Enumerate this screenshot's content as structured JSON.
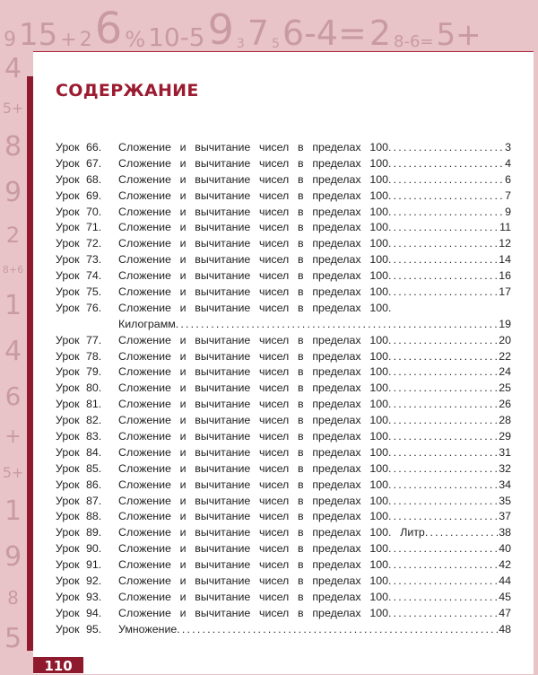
{
  "background_decor": [
    "9",
    "15",
    "+",
    "2",
    "6",
    "%",
    "10-5",
    "9",
    "3",
    "7",
    "5",
    "6-4=",
    "2",
    "8-6=",
    "5+",
    "4",
    "5+",
    "8",
    "9",
    "2",
    "8+6",
    "1",
    "4",
    "6",
    "+",
    "5+",
    "1",
    "9",
    "8",
    "5"
  ],
  "title": "СОДЕРЖАНИЕ",
  "entries": [
    {
      "label": "Урок 66.",
      "text": "Сложение и вычитание чисел в пределах 100",
      "page": "3"
    },
    {
      "label": "Урок 67.",
      "text": "Сложение и вычитание чисел в пределах 100",
      "page": "4"
    },
    {
      "label": "Урок 68.",
      "text": "Сложение и вычитание чисел в пределах 100",
      "page": "6"
    },
    {
      "label": "Урок 69.",
      "text": "Сложение и вычитание чисел в пределах 100",
      "page": "7"
    },
    {
      "label": "Урок 70.",
      "text": "Сложение и вычитание чисел в пределах 100",
      "page": "9"
    },
    {
      "label": "Урок 71.",
      "text": "Сложение и вычитание чисел в пределах 100",
      "page": "11"
    },
    {
      "label": "Урок 72.",
      "text": "Сложение и вычитание чисел в пределах 100",
      "page": "12"
    },
    {
      "label": "Урок 73.",
      "text": "Сложение и вычитание чисел в пределах 100",
      "page": "14"
    },
    {
      "label": "Урок 74.",
      "text": "Сложение и вычитание чисел в пределах 100",
      "page": "16"
    },
    {
      "label": "Урок 75.",
      "text": "Сложение и вычитание чисел в пределах 100",
      "page": "17"
    },
    {
      "label": "Урок 76.",
      "text": "Сложение и вычитание чисел в пределах 100.",
      "continuation": "Килограмм",
      "page": "19"
    },
    {
      "label": "Урок 77.",
      "text": "Сложение и вычитание чисел в пределах 100",
      "page": "20"
    },
    {
      "label": "Урок 78.",
      "text": "Сложение и вычитание чисел в пределах 100",
      "page": "22"
    },
    {
      "label": "Урок 79.",
      "text": "Сложение и вычитание чисел в пределах 100",
      "page": "24"
    },
    {
      "label": "Урок 80.",
      "text": "Сложение и вычитание чисел в пределах 100",
      "page": "25"
    },
    {
      "label": "Урок 81.",
      "text": "Сложение и вычитание чисел в пределах 100",
      "page": "26"
    },
    {
      "label": "Урок 82.",
      "text": "Сложение и вычитание чисел в пределах 100",
      "page": "28"
    },
    {
      "label": "Урок 83.",
      "text": "Сложение и вычитание чисел в пределах 100",
      "page": "29"
    },
    {
      "label": "Урок 84.",
      "text": "Сложение и вычитание чисел в пределах 100",
      "page": "31"
    },
    {
      "label": "Урок 85.",
      "text": "Сложение и вычитание чисел в пределах 100",
      "page": "32"
    },
    {
      "label": "Урок 86.",
      "text": "Сложение и вычитание чисел в пределах 100",
      "page": "34"
    },
    {
      "label": "Урок 87.",
      "text": "Сложение и вычитание чисел в пределах 100",
      "page": "35"
    },
    {
      "label": "Урок 88.",
      "text": "Сложение и вычитание чисел в пределах 100",
      "page": "37"
    },
    {
      "label": "Урок 89.",
      "text": "Сложение и вычитание чисел в пределах 100. Литр",
      "page": "38"
    },
    {
      "label": "Урок 90.",
      "text": "Сложение и вычитание чисел в пределах 100",
      "page": "40"
    },
    {
      "label": "Урок 91.",
      "text": "Сложение и вычитание чисел в пределах 100",
      "page": "42"
    },
    {
      "label": "Урок 92.",
      "text": "Сложение и вычитание чисел в пределах 100",
      "page": "44"
    },
    {
      "label": "Урок 93.",
      "text": "Сложение и вычитание чисел в пределах 100",
      "page": "45"
    },
    {
      "label": "Урок 94.",
      "text": "Сложение и вычитание чисел в пределах 100",
      "page": "47"
    },
    {
      "label": "Урок 95.",
      "text": "Умножение",
      "page": "48"
    }
  ],
  "page_number": "110",
  "colors": {
    "accent": "#9b1b30",
    "background": "#e8c4c9",
    "decor": "#c99aa1"
  }
}
